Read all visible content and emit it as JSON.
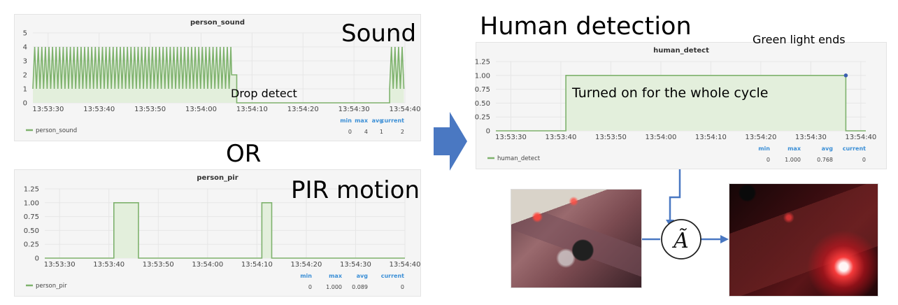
{
  "labels": {
    "sound": "Sound",
    "or": "OR",
    "pir_motion": "PIR motion",
    "human_detection": "Human detection",
    "drop_detect": "Drop detect",
    "turned_on": "Turned on for the whole cycle",
    "green_light_ends": "Green light ends",
    "operator_symbol": "Ã"
  },
  "colors": {
    "series": "#7eb26d",
    "fill": "#e3efdc",
    "grid": "#e6e6e6",
    "stat_header": "#3b8fd6",
    "arrow": "#4a78c2"
  },
  "icons": [
    "right-arrow-icon",
    "a-tilde-operator-icon"
  ],
  "chart_data": [
    {
      "id": "person_sound",
      "type": "line",
      "title": "person_sound",
      "ylim": [
        0,
        5
      ],
      "yticks": [
        0,
        1,
        2,
        3,
        4,
        5
      ],
      "ytick_labels": [
        "0",
        "1",
        "2",
        "3",
        "4",
        "5"
      ],
      "xlim": [
        "13:53:27",
        "13:54:40"
      ],
      "xticks": [
        "13:53:30",
        "13:53:40",
        "13:53:50",
        "13:54:00",
        "13:54:10",
        "13:54:20",
        "13:54:30",
        "13:54:40"
      ],
      "grid": true,
      "legend": "bottom-left",
      "series": [
        {
          "name": "person_sound",
          "oscillation": {
            "low": 1,
            "high": 4,
            "period_s": 0.7
          },
          "segments": [
            {
              "start": "13:53:27",
              "end": "13:54:06",
              "pattern": "oscillating"
            },
            {
              "start": "13:54:06",
              "end": "13:54:07",
              "value": 2
            },
            {
              "start": "13:54:07",
              "end": "13:54:37",
              "value": 0
            },
            {
              "start": "13:54:37",
              "end": "13:54:40",
              "pattern": "oscillating"
            }
          ]
        }
      ],
      "stats": {
        "headers": [
          "min",
          "max",
          "avg",
          "current"
        ],
        "values": [
          "0",
          "4",
          "1",
          "2"
        ]
      }
    },
    {
      "id": "person_pir",
      "type": "line",
      "title": "person_pir",
      "ylim": [
        0,
        1.25
      ],
      "yticks": [
        0,
        0.25,
        0.5,
        0.75,
        1.0,
        1.25
      ],
      "ytick_labels": [
        "0",
        "0.25",
        "0.50",
        "0.75",
        "1.00",
        "1.25"
      ],
      "xlim": [
        "13:53:27",
        "13:54:40"
      ],
      "xticks": [
        "13:53:30",
        "13:53:40",
        "13:53:50",
        "13:54:00",
        "13:54:10",
        "13:54:20",
        "13:54:30",
        "13:54:40"
      ],
      "grid": true,
      "legend": "bottom-left",
      "series": [
        {
          "name": "person_pir",
          "steps": [
            [
              "13:53:27",
              0
            ],
            [
              "13:53:41",
              0
            ],
            [
              "13:53:41",
              1
            ],
            [
              "13:53:46",
              1
            ],
            [
              "13:53:46",
              0
            ],
            [
              "13:54:11",
              0
            ],
            [
              "13:54:11",
              1
            ],
            [
              "13:54:13",
              1
            ],
            [
              "13:54:13",
              0
            ],
            [
              "13:54:40",
              0
            ]
          ]
        }
      ],
      "stats": {
        "headers": [
          "min",
          "max",
          "avg",
          "current"
        ],
        "values": [
          "0",
          "1.000",
          "0.089",
          "0"
        ]
      }
    },
    {
      "id": "human_detect",
      "type": "line",
      "title": "human_detect",
      "ylim": [
        0,
        1.25
      ],
      "yticks": [
        0,
        0.25,
        0.5,
        0.75,
        1.0,
        1.25
      ],
      "ytick_labels": [
        "0",
        "0.25",
        "0.50",
        "0.75",
        "1.00",
        "1.25"
      ],
      "xlim": [
        "13:53:27",
        "13:54:41"
      ],
      "xticks": [
        "13:53:30",
        "13:53:40",
        "13:53:50",
        "13:54:00",
        "13:54:10",
        "13:54:20",
        "13:54:30",
        "13:54:40"
      ],
      "grid": true,
      "legend": "bottom-left",
      "series": [
        {
          "name": "human_detect",
          "steps": [
            [
              "13:53:27",
              0
            ],
            [
              "13:53:41",
              0
            ],
            [
              "13:53:41",
              1
            ],
            [
              "13:54:37",
              1
            ],
            [
              "13:54:37",
              0
            ],
            [
              "13:54:41",
              0
            ]
          ]
        }
      ],
      "stats": {
        "headers": [
          "min",
          "max",
          "avg",
          "current"
        ],
        "values": [
          "0",
          "1.000",
          "0.768",
          "0"
        ]
      }
    }
  ]
}
